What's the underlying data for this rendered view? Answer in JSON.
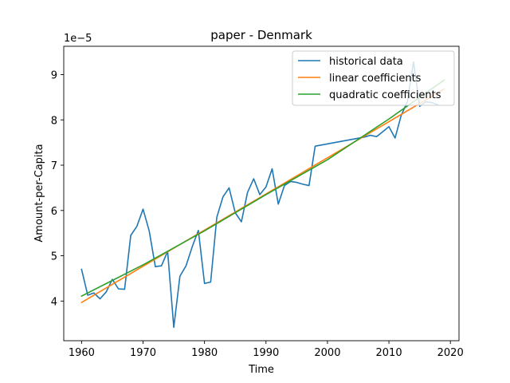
{
  "chart_data": {
    "type": "line",
    "title": "paper - Denmark",
    "xlabel": "Time",
    "ylabel": "Amount-per-Capita",
    "y_offset_label": "1e−5",
    "xlim": [
      1957.1,
      2021.4
    ],
    "ylim": [
      3.125,
      9.625
    ],
    "x_ticks": [
      1960,
      1970,
      1980,
      1990,
      2000,
      2010,
      2020
    ],
    "x_tick_labels": [
      "1960",
      "1970",
      "1980",
      "1990",
      "2000",
      "2010",
      "2020"
    ],
    "y_ticks": [
      4,
      5,
      6,
      7,
      8,
      9
    ],
    "y_tick_labels": [
      "4",
      "5",
      "6",
      "7",
      "8",
      "9"
    ],
    "grid": false,
    "legend_position": "top-right",
    "series": [
      {
        "name": "historical data",
        "color": "#1f77b4",
        "x": [
          1960,
          1961,
          1962,
          1963,
          1964,
          1965,
          1966,
          1967,
          1968,
          1969,
          1970,
          1971,
          1972,
          1973,
          1974,
          1975,
          1976,
          1977,
          1978,
          1979,
          1980,
          1981,
          1982,
          1983,
          1984,
          1985,
          1986,
          1987,
          1988,
          1989,
          1990,
          1991,
          1992,
          1993,
          1994,
          1995,
          1996,
          1997,
          1998,
          2006,
          2007,
          2008,
          2009,
          2010,
          2011,
          2012,
          2013,
          2014,
          2015,
          2016,
          2017,
          2018
        ],
        "y": [
          4.7,
          4.13,
          4.18,
          4.05,
          4.2,
          4.48,
          4.27,
          4.26,
          5.45,
          5.65,
          6.03,
          5.55,
          4.76,
          4.78,
          5.1,
          3.42,
          4.55,
          4.78,
          5.2,
          5.56,
          4.39,
          4.42,
          5.85,
          6.3,
          6.5,
          5.95,
          5.75,
          6.4,
          6.7,
          6.35,
          6.52,
          6.92,
          6.14,
          6.55,
          6.64,
          6.62,
          6.58,
          6.55,
          7.42,
          7.62,
          7.66,
          7.63,
          7.74,
          7.85,
          7.6,
          8.1,
          8.4,
          9.28,
          8.3,
          8.4,
          8.38,
          8.33
        ]
      },
      {
        "name": "linear coefficients",
        "color": "#ff7f0e",
        "x": [
          1960,
          2019
        ],
        "y": [
          3.97,
          8.68
        ]
      },
      {
        "name": "quadratic coefficients",
        "color": "#2ca02c",
        "x": [
          1960,
          1970,
          1980,
          1990,
          2000,
          2010,
          2019
        ],
        "y": [
          4.11,
          4.8,
          5.55,
          6.35,
          7.12,
          8.02,
          8.88
        ]
      }
    ]
  }
}
